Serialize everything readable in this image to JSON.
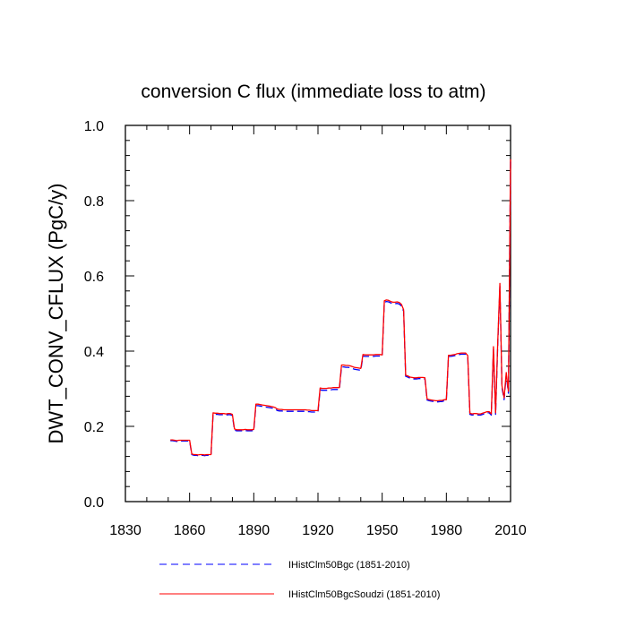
{
  "chart_data": {
    "type": "line",
    "title": "conversion C flux (immediate loss to atm)",
    "ylabel": "DWT_CONV_CFLUX  (PgC/y)",
    "xlabel": "",
    "xlim": [
      1830,
      2010
    ],
    "ylim": [
      0.0,
      1.0
    ],
    "x_ticks": [
      1830,
      1860,
      1890,
      1920,
      1950,
      1980,
      2010
    ],
    "y_ticks": [
      "0.0",
      "0.2",
      "0.4",
      "0.6",
      "0.8",
      "1.0"
    ],
    "grid": false,
    "legend_position": "bottom",
    "series": [
      {
        "name": "IHistClm50Bgc (1851-2010)",
        "color": "#0000ff",
        "style": "dashed",
        "x": [
          1851,
          1852,
          1853,
          1854,
          1855,
          1856,
          1857,
          1858,
          1859,
          1860,
          1861,
          1862,
          1863,
          1864,
          1865,
          1866,
          1867,
          1868,
          1869,
          1870,
          1871,
          1872,
          1873,
          1874,
          1875,
          1876,
          1877,
          1878,
          1879,
          1880,
          1881,
          1882,
          1883,
          1884,
          1885,
          1886,
          1887,
          1888,
          1889,
          1890,
          1891,
          1892,
          1893,
          1894,
          1895,
          1896,
          1897,
          1898,
          1899,
          1900,
          1901,
          1902,
          1903,
          1904,
          1905,
          1906,
          1907,
          1908,
          1909,
          1910,
          1911,
          1912,
          1913,
          1914,
          1915,
          1916,
          1917,
          1918,
          1919,
          1920,
          1921,
          1922,
          1923,
          1924,
          1925,
          1926,
          1927,
          1928,
          1929,
          1930,
          1931,
          1932,
          1933,
          1934,
          1935,
          1936,
          1937,
          1938,
          1939,
          1940,
          1941,
          1942,
          1943,
          1944,
          1945,
          1946,
          1947,
          1948,
          1949,
          1950,
          1951,
          1952,
          1953,
          1954,
          1955,
          1956,
          1957,
          1958,
          1959,
          1960,
          1961,
          1962,
          1963,
          1964,
          1965,
          1966,
          1967,
          1968,
          1969,
          1970,
          1971,
          1972,
          1973,
          1974,
          1975,
          1976,
          1977,
          1978,
          1979,
          1980,
          1981,
          1982,
          1983,
          1984,
          1985,
          1986,
          1987,
          1988,
          1989,
          1990,
          1991,
          1992,
          1993,
          1994,
          1995,
          1996,
          1997,
          1998,
          1999,
          2000,
          2001,
          2002,
          2003,
          2004,
          2005,
          2006,
          2007,
          2008,
          2009,
          2010
        ],
        "y": [
          0.162,
          0.162,
          0.161,
          0.16,
          0.161,
          0.161,
          0.161,
          0.161,
          0.161,
          0.161,
          0.125,
          0.123,
          0.123,
          0.122,
          0.123,
          0.123,
          0.122,
          0.123,
          0.123,
          0.123,
          0.233,
          0.232,
          0.232,
          0.231,
          0.231,
          0.231,
          0.23,
          0.231,
          0.231,
          0.229,
          0.19,
          0.188,
          0.188,
          0.188,
          0.188,
          0.189,
          0.188,
          0.188,
          0.188,
          0.189,
          0.255,
          0.255,
          0.254,
          0.253,
          0.252,
          0.251,
          0.25,
          0.249,
          0.248,
          0.246,
          0.242,
          0.241,
          0.241,
          0.24,
          0.24,
          0.24,
          0.24,
          0.24,
          0.24,
          0.24,
          0.24,
          0.24,
          0.24,
          0.24,
          0.239,
          0.239,
          0.238,
          0.238,
          0.238,
          0.238,
          0.297,
          0.296,
          0.296,
          0.296,
          0.297,
          0.297,
          0.298,
          0.298,
          0.298,
          0.298,
          0.358,
          0.358,
          0.357,
          0.357,
          0.356,
          0.354,
          0.352,
          0.351,
          0.35,
          0.349,
          0.387,
          0.386,
          0.386,
          0.386,
          0.386,
          0.386,
          0.387,
          0.387,
          0.387,
          0.386,
          0.53,
          0.532,
          0.531,
          0.528,
          0.526,
          0.526,
          0.527,
          0.525,
          0.52,
          0.506,
          0.333,
          0.331,
          0.328,
          0.327,
          0.326,
          0.326,
          0.327,
          0.327,
          0.327,
          0.326,
          0.27,
          0.268,
          0.267,
          0.266,
          0.265,
          0.265,
          0.266,
          0.266,
          0.268,
          0.268,
          0.386,
          0.386,
          0.387,
          0.388,
          0.39,
          0.391,
          0.392,
          0.392,
          0.392,
          0.385,
          0.232,
          0.23,
          0.231,
          0.231,
          0.23,
          0.23,
          0.232,
          0.234,
          0.236,
          0.236,
          0.23,
          0.405,
          0.232,
          0.418,
          0.572,
          0.303,
          0.271,
          0.337,
          0.288,
          0.905
        ]
      },
      {
        "name": "IHistClm50BgcSoudzi (1851-2010)",
        "color": "#ff0000",
        "style": "solid",
        "x": [
          1851,
          1852,
          1853,
          1854,
          1855,
          1856,
          1857,
          1858,
          1859,
          1860,
          1861,
          1862,
          1863,
          1864,
          1865,
          1866,
          1867,
          1868,
          1869,
          1870,
          1871,
          1872,
          1873,
          1874,
          1875,
          1876,
          1877,
          1878,
          1879,
          1880,
          1881,
          1882,
          1883,
          1884,
          1885,
          1886,
          1887,
          1888,
          1889,
          1890,
          1891,
          1892,
          1893,
          1894,
          1895,
          1896,
          1897,
          1898,
          1899,
          1900,
          1901,
          1902,
          1903,
          1904,
          1905,
          1906,
          1907,
          1908,
          1909,
          1910,
          1911,
          1912,
          1913,
          1914,
          1915,
          1916,
          1917,
          1918,
          1919,
          1920,
          1921,
          1922,
          1923,
          1924,
          1925,
          1926,
          1927,
          1928,
          1929,
          1930,
          1931,
          1932,
          1933,
          1934,
          1935,
          1936,
          1937,
          1938,
          1939,
          1940,
          1941,
          1942,
          1943,
          1944,
          1945,
          1946,
          1947,
          1948,
          1949,
          1950,
          1951,
          1952,
          1953,
          1954,
          1955,
          1956,
          1957,
          1958,
          1959,
          1960,
          1961,
          1962,
          1963,
          1964,
          1965,
          1966,
          1967,
          1968,
          1969,
          1970,
          1971,
          1972,
          1973,
          1974,
          1975,
          1976,
          1977,
          1978,
          1979,
          1980,
          1981,
          1982,
          1983,
          1984,
          1985,
          1986,
          1987,
          1988,
          1989,
          1990,
          1991,
          1992,
          1993,
          1994,
          1995,
          1996,
          1997,
          1998,
          1999,
          2000,
          2001,
          2002,
          2003,
          2004,
          2005,
          2006,
          2007,
          2008,
          2009,
          2010
        ],
        "y": [
          0.164,
          0.164,
          0.163,
          0.162,
          0.163,
          0.163,
          0.163,
          0.163,
          0.163,
          0.163,
          0.127,
          0.125,
          0.125,
          0.124,
          0.125,
          0.125,
          0.124,
          0.125,
          0.125,
          0.125,
          0.236,
          0.235,
          0.235,
          0.234,
          0.234,
          0.234,
          0.233,
          0.234,
          0.234,
          0.232,
          0.193,
          0.191,
          0.191,
          0.191,
          0.191,
          0.192,
          0.191,
          0.191,
          0.191,
          0.192,
          0.259,
          0.259,
          0.258,
          0.257,
          0.256,
          0.255,
          0.254,
          0.253,
          0.252,
          0.25,
          0.246,
          0.245,
          0.245,
          0.244,
          0.244,
          0.244,
          0.244,
          0.244,
          0.244,
          0.244,
          0.244,
          0.244,
          0.244,
          0.244,
          0.243,
          0.243,
          0.242,
          0.242,
          0.242,
          0.242,
          0.302,
          0.301,
          0.301,
          0.301,
          0.302,
          0.302,
          0.303,
          0.303,
          0.303,
          0.303,
          0.363,
          0.363,
          0.362,
          0.362,
          0.361,
          0.359,
          0.357,
          0.356,
          0.355,
          0.354,
          0.391,
          0.39,
          0.39,
          0.39,
          0.39,
          0.39,
          0.391,
          0.391,
          0.391,
          0.39,
          0.534,
          0.536,
          0.535,
          0.532,
          0.53,
          0.53,
          0.531,
          0.529,
          0.524,
          0.51,
          0.336,
          0.334,
          0.331,
          0.33,
          0.329,
          0.329,
          0.33,
          0.33,
          0.33,
          0.329,
          0.273,
          0.271,
          0.27,
          0.269,
          0.268,
          0.268,
          0.269,
          0.269,
          0.271,
          0.271,
          0.389,
          0.389,
          0.39,
          0.391,
          0.393,
          0.394,
          0.395,
          0.395,
          0.395,
          0.388,
          0.235,
          0.233,
          0.234,
          0.234,
          0.233,
          0.233,
          0.235,
          0.237,
          0.239,
          0.239,
          0.233,
          0.412,
          0.236,
          0.425,
          0.58,
          0.308,
          0.276,
          0.343,
          0.293,
          0.91
        ]
      }
    ]
  }
}
